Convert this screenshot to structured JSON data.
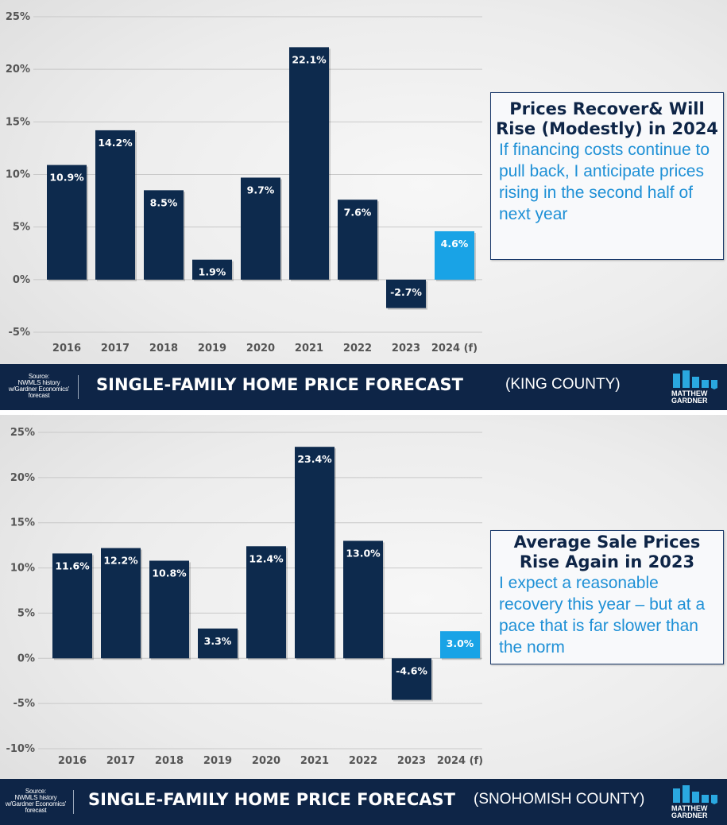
{
  "colors": {
    "navy": "#0e2547",
    "bar": "#0d2a4d",
    "forecast": "#19a3e6",
    "callout_body": "#1e90d6",
    "grid": "#c8c8c8",
    "tick": "#555555"
  },
  "panels": [
    {
      "title": "SINGLE-FAMILY HOME PRICE FORECAST",
      "subtitle": "(KING COUNTY)",
      "source": [
        "Source:",
        "NWMLS history",
        "w/Gardner Economics'",
        "forecast"
      ],
      "logo": {
        "icon": "matthew-gardner-bars-logo-icon",
        "name_line1": "MATTHEW",
        "name_line2": "GARDNER"
      },
      "callout": {
        "heading": "Prices Recover& Will Rise (Modestly) in 2024",
        "body": "If financing costs continue to pull back, I anticipate prices rising in the second half of next year"
      }
    },
    {
      "title": "SINGLE-FAMILY HOME PRICE FORECAST",
      "subtitle": "(SNOHOMISH COUNTY)",
      "source": [
        "Source:",
        "NWMLS history",
        "w/Gardner Economics'",
        "forecast"
      ],
      "logo": {
        "icon": "matthew-gardner-bars-logo-icon",
        "name_line1": "MATTHEW",
        "name_line2": "GARDNER"
      },
      "callout": {
        "heading": "Average Sale Prices Rise Again in 2023",
        "body": "I expect a reasonable recovery this year – but at a pace that is far slower than the norm"
      }
    }
  ],
  "chart_data": [
    {
      "type": "bar",
      "categories": [
        "2016",
        "2017",
        "2018",
        "2019",
        "2020",
        "2021",
        "2022",
        "2023",
        "2024 (f)"
      ],
      "values": [
        10.9,
        14.2,
        8.5,
        1.9,
        9.7,
        22.1,
        7.6,
        -2.7,
        4.6
      ],
      "value_labels": [
        "10.9%",
        "14.2%",
        "8.5%",
        "1.9%",
        "9.7%",
        "22.1%",
        "7.6%",
        "-2.7%",
        "4.6%"
      ],
      "forecast_index": 8,
      "yticks": [
        25,
        20,
        15,
        10,
        5,
        0,
        -5
      ],
      "ytick_labels": [
        "25%",
        "20%",
        "15%",
        "10%",
        "5%",
        "0%",
        "-5%"
      ],
      "ylim": [
        -5,
        25
      ],
      "grid": true,
      "title": "SINGLE-FAMILY HOME PRICE FORECAST (KING COUNTY)"
    },
    {
      "type": "bar",
      "categories": [
        "2016",
        "2017",
        "2018",
        "2019",
        "2020",
        "2021",
        "2022",
        "2023",
        "2024 (f)"
      ],
      "values": [
        11.6,
        12.2,
        10.8,
        3.3,
        12.4,
        23.4,
        13.0,
        -4.6,
        3.0
      ],
      "value_labels": [
        "11.6%",
        "12.2%",
        "10.8%",
        "3.3%",
        "12.4%",
        "23.4%",
        "13.0%",
        "-4.6%",
        "3.0%"
      ],
      "forecast_index": 8,
      "yticks": [
        25,
        20,
        15,
        10,
        5,
        0,
        -5,
        -10
      ],
      "ytick_labels": [
        "25%",
        "20%",
        "15%",
        "10%",
        "5%",
        "0%",
        "-5%",
        "-10%"
      ],
      "ylim": [
        -10,
        25
      ],
      "grid": true,
      "title": "SINGLE-FAMILY HOME PRICE FORECAST (SNOHOMISH COUNTY)"
    }
  ]
}
